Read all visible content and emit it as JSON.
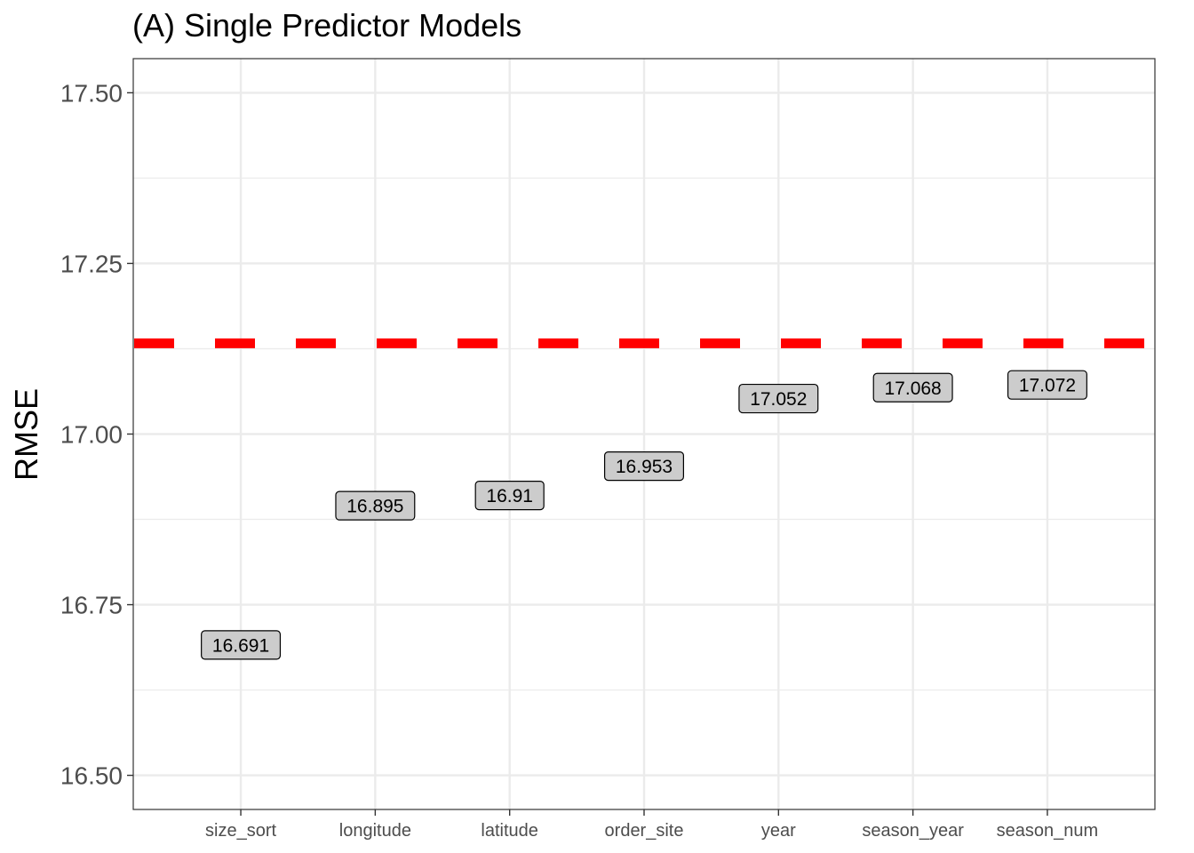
{
  "chart_data": {
    "type": "scatter",
    "title": "(A) Single Predictor Models",
    "xlabel": "",
    "ylabel": "RMSE",
    "categories": [
      "size_sort",
      "longitude",
      "latitude",
      "order_site",
      "year",
      "season_year",
      "season_num"
    ],
    "values": [
      16.691,
      16.895,
      16.91,
      16.953,
      17.052,
      17.068,
      17.072
    ],
    "labels": [
      "16.691",
      "16.895",
      "16.91",
      "16.953",
      "17.052",
      "17.068",
      "17.072"
    ],
    "ylim": [
      16.45,
      17.55
    ],
    "yticks": [
      16.5,
      16.75,
      17.0,
      17.25,
      17.5
    ],
    "ytick_labels": [
      "16.50",
      "16.75",
      "17.00",
      "17.25",
      "17.50"
    ],
    "reference_line": {
      "value": 17.133,
      "style": "dashed",
      "color": "#ff0000"
    },
    "grid": true,
    "legend": "none",
    "colors": {
      "label_fill": "#cccccc",
      "grid": "#ebebeb",
      "axis_text": "#4d4d4d"
    }
  }
}
